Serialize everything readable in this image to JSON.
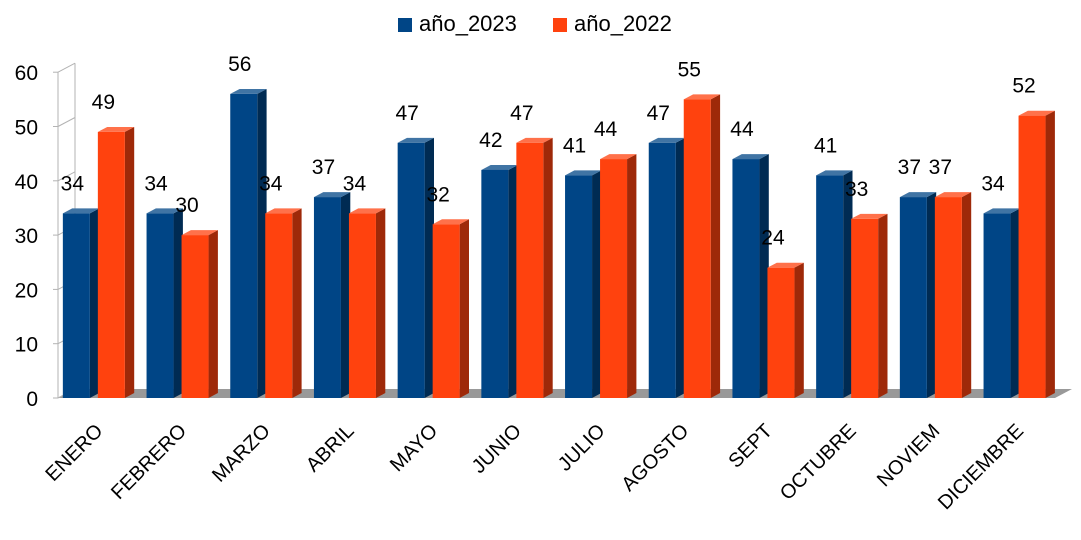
{
  "chart_data": {
    "type": "bar",
    "categories": [
      "ENERO",
      "FEBRERO",
      "MARZO",
      "ABRIL",
      "MAYO",
      "JUNIO",
      "JULIO",
      "AGOSTO",
      "SEPT",
      "OCTUBRE",
      "NOVIEM",
      "DICIEMBRE"
    ],
    "series": [
      {
        "name": "año_2023",
        "color": "#004586",
        "values": [
          34,
          34,
          56,
          37,
          47,
          42,
          41,
          47,
          44,
          41,
          37,
          34
        ]
      },
      {
        "name": "año_2022",
        "color": "#ff420e",
        "values": [
          49,
          30,
          34,
          34,
          32,
          47,
          44,
          55,
          24,
          33,
          37,
          52
        ]
      }
    ],
    "ylim": [
      0,
      60
    ],
    "yticks": [
      0,
      10,
      20,
      30,
      40,
      50,
      60
    ],
    "legend": "top",
    "grid": false,
    "data_labels": true,
    "style": "3d-bar"
  }
}
